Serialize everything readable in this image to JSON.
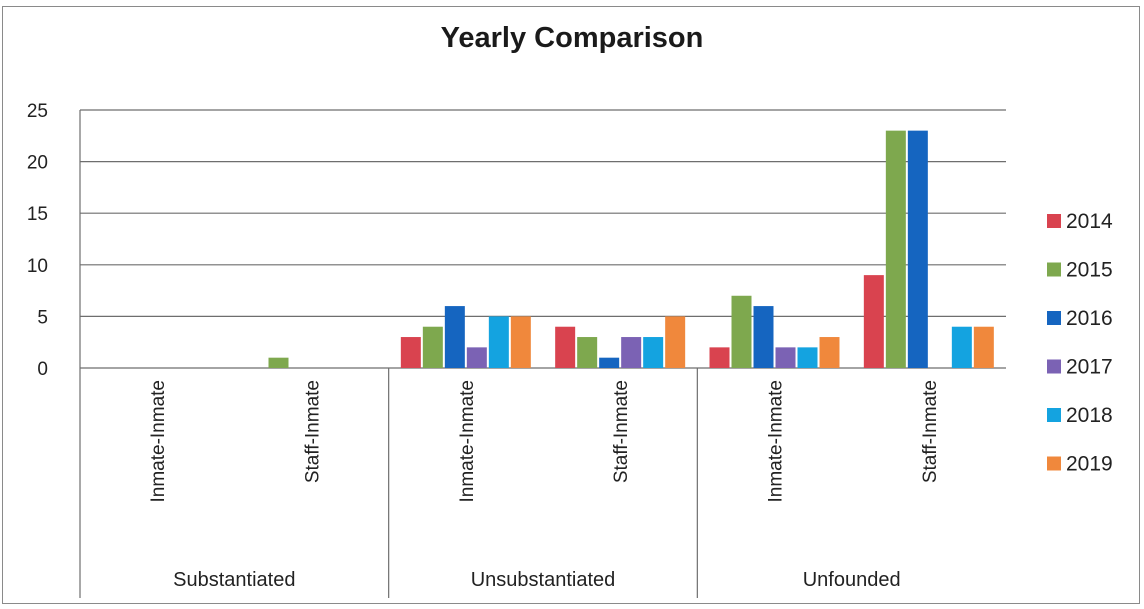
{
  "chart_data": {
    "type": "bar",
    "title": "Yearly Comparison",
    "xlabel": "",
    "ylabel": "",
    "ylim": [
      0,
      25
    ],
    "yticks": [
      0,
      5,
      10,
      15,
      20,
      25
    ],
    "grid": true,
    "legend_position": "right",
    "groups": [
      {
        "label": "Substantiated",
        "categories": [
          "Inmate-Inmate",
          "Staff-Inmate"
        ]
      },
      {
        "label": "Unsubstantiated",
        "categories": [
          "Inmate-Inmate",
          "Staff-Inmate"
        ]
      },
      {
        "label": "Unfounded",
        "categories": [
          "Inmate-Inmate",
          "Staff-Inmate"
        ]
      }
    ],
    "categories": [
      "Inmate-Inmate",
      "Staff-Inmate",
      "Inmate-Inmate",
      "Staff-Inmate",
      "Inmate-Inmate",
      "Staff-Inmate"
    ],
    "series": [
      {
        "name": "2014",
        "color": "#d9434f",
        "values": [
          0,
          0,
          3,
          4,
          2,
          9
        ]
      },
      {
        "name": "2015",
        "color": "#7ea84e",
        "values": [
          0,
          1,
          4,
          3,
          7,
          23
        ]
      },
      {
        "name": "2016",
        "color": "#1565c0",
        "values": [
          0,
          0,
          6,
          1,
          6,
          23
        ]
      },
      {
        "name": "2017",
        "color": "#7b62b4",
        "values": [
          0,
          0,
          2,
          3,
          2,
          0
        ]
      },
      {
        "name": "2018",
        "color": "#14a3e0",
        "values": [
          0,
          0,
          5,
          3,
          2,
          4
        ]
      },
      {
        "name": "2019",
        "color": "#f0883c",
        "values": [
          0,
          0,
          5,
          5,
          3,
          4
        ]
      }
    ]
  }
}
